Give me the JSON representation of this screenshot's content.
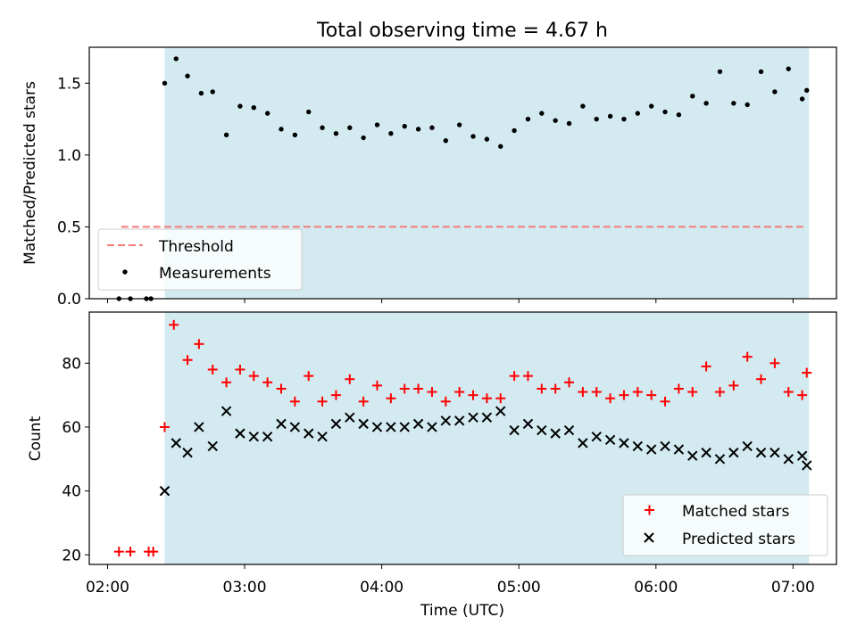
{
  "figure": {
    "title": "Total observing time = 4.67 h",
    "xlabel": "Time (UTC)",
    "x_ticks": [
      "02:00",
      "03:00",
      "04:00",
      "05:00",
      "06:00",
      "07:00"
    ]
  },
  "colors": {
    "span": "#d3eaf0",
    "threshold": "#f57a7a",
    "matched": "#ff0000",
    "predicted": "#000000",
    "points": "#000000"
  },
  "chart_data": [
    {
      "type": "scatter",
      "ylabel": "Matched/Predicted stars",
      "xlim": [
        "01:52",
        "07:19"
      ],
      "ylim": [
        0,
        1.75
      ],
      "y_ticks": [
        "0.0",
        "0.5",
        "1.0",
        "1.5"
      ],
      "observing_span": [
        "02:25",
        "07:07"
      ],
      "legend": {
        "placement": "lower left",
        "entries": [
          "Threshold",
          "Measurements"
        ]
      },
      "threshold": {
        "name": "Threshold",
        "value": 0.5,
        "x": [
          "02:06",
          "07:06"
        ],
        "style": "dashed"
      },
      "series": [
        {
          "name": "Measurements",
          "x": [
            "02:05",
            "02:10",
            "02:17",
            "02:19",
            "02:25",
            "02:30",
            "02:35",
            "02:41",
            "02:46",
            "02:52",
            "02:58",
            "03:04",
            "03:10",
            "03:16",
            "03:22",
            "03:28",
            "03:34",
            "03:40",
            "03:46",
            "03:52",
            "03:58",
            "04:04",
            "04:10",
            "04:16",
            "04:22",
            "04:28",
            "04:34",
            "04:40",
            "04:46",
            "04:52",
            "04:58",
            "05:04",
            "05:10",
            "05:16",
            "05:22",
            "05:28",
            "05:34",
            "05:40",
            "05:46",
            "05:52",
            "05:58",
            "06:04",
            "06:10",
            "06:16",
            "06:22",
            "06:28",
            "06:34",
            "06:40",
            "06:46",
            "06:52",
            "06:58",
            "07:04",
            "07:06"
          ],
          "y": [
            0.0,
            0.0,
            0.0,
            0.0,
            1.5,
            1.67,
            1.55,
            1.43,
            1.44,
            1.14,
            1.34,
            1.33,
            1.29,
            1.18,
            1.14,
            1.3,
            1.19,
            1.15,
            1.19,
            1.12,
            1.21,
            1.15,
            1.2,
            1.18,
            1.19,
            1.1,
            1.21,
            1.13,
            1.11,
            1.06,
            1.17,
            1.25,
            1.29,
            1.24,
            1.22,
            1.34,
            1.25,
            1.27,
            1.25,
            1.29,
            1.34,
            1.3,
            1.28,
            1.41,
            1.36,
            1.58,
            1.36,
            1.35,
            1.58,
            1.44,
            1.6,
            1.39,
            1.45
          ]
        }
      ]
    },
    {
      "type": "scatter",
      "ylabel": "Count",
      "xlim": [
        "01:52",
        "07:19"
      ],
      "ylim": [
        17,
        96
      ],
      "y_ticks": [
        "20",
        "40",
        "60",
        "80"
      ],
      "observing_span": [
        "02:25",
        "07:07"
      ],
      "legend": {
        "placement": "lower right",
        "entries": [
          "Matched stars",
          "Predicted stars"
        ]
      },
      "series": [
        {
          "name": "Matched stars",
          "marker": "plus",
          "x": [
            "02:05",
            "02:10",
            "02:18",
            "02:20",
            "02:25",
            "02:29",
            "02:35",
            "02:40",
            "02:46",
            "02:52",
            "02:58",
            "03:04",
            "03:10",
            "03:16",
            "03:22",
            "03:28",
            "03:34",
            "03:40",
            "03:46",
            "03:52",
            "03:58",
            "04:04",
            "04:10",
            "04:16",
            "04:22",
            "04:28",
            "04:34",
            "04:40",
            "04:46",
            "04:52",
            "04:58",
            "05:04",
            "05:10",
            "05:16",
            "05:22",
            "05:28",
            "05:34",
            "05:40",
            "05:46",
            "05:52",
            "05:58",
            "06:04",
            "06:10",
            "06:16",
            "06:22",
            "06:28",
            "06:34",
            "06:40",
            "06:46",
            "06:52",
            "06:58",
            "07:04",
            "07:06"
          ],
          "y": [
            21,
            21,
            21,
            21,
            60,
            92,
            81,
            86,
            78,
            74,
            78,
            76,
            74,
            72,
            68,
            76,
            68,
            70,
            75,
            68,
            73,
            69,
            72,
            72,
            71,
            68,
            71,
            70,
            69,
            69,
            76,
            76,
            72,
            72,
            74,
            71,
            71,
            69,
            70,
            71,
            70,
            68,
            72,
            71,
            79,
            71,
            73,
            82,
            75,
            80,
            71,
            70,
            77
          ]
        },
        {
          "name": "Predicted stars",
          "marker": "x",
          "x": [
            "02:25",
            "02:30",
            "02:35",
            "02:40",
            "02:46",
            "02:52",
            "02:58",
            "03:04",
            "03:10",
            "03:16",
            "03:22",
            "03:28",
            "03:34",
            "03:40",
            "03:46",
            "03:52",
            "03:58",
            "04:04",
            "04:10",
            "04:16",
            "04:22",
            "04:28",
            "04:34",
            "04:40",
            "04:46",
            "04:52",
            "04:58",
            "05:04",
            "05:10",
            "05:16",
            "05:22",
            "05:28",
            "05:34",
            "05:40",
            "05:46",
            "05:52",
            "05:58",
            "06:04",
            "06:10",
            "06:16",
            "06:22",
            "06:28",
            "06:34",
            "06:40",
            "06:46",
            "06:52",
            "06:58",
            "07:04",
            "07:06"
          ],
          "y": [
            40,
            55,
            52,
            60,
            54,
            65,
            58,
            57,
            57,
            61,
            60,
            58,
            57,
            61,
            63,
            61,
            60,
            60,
            60,
            61,
            60,
            62,
            62,
            63,
            63,
            65,
            59,
            61,
            59,
            58,
            59,
            55,
            57,
            56,
            55,
            54,
            53,
            54,
            53,
            51,
            52,
            50,
            52,
            54,
            52,
            52,
            50,
            51,
            48
          ]
        }
      ]
    }
  ]
}
